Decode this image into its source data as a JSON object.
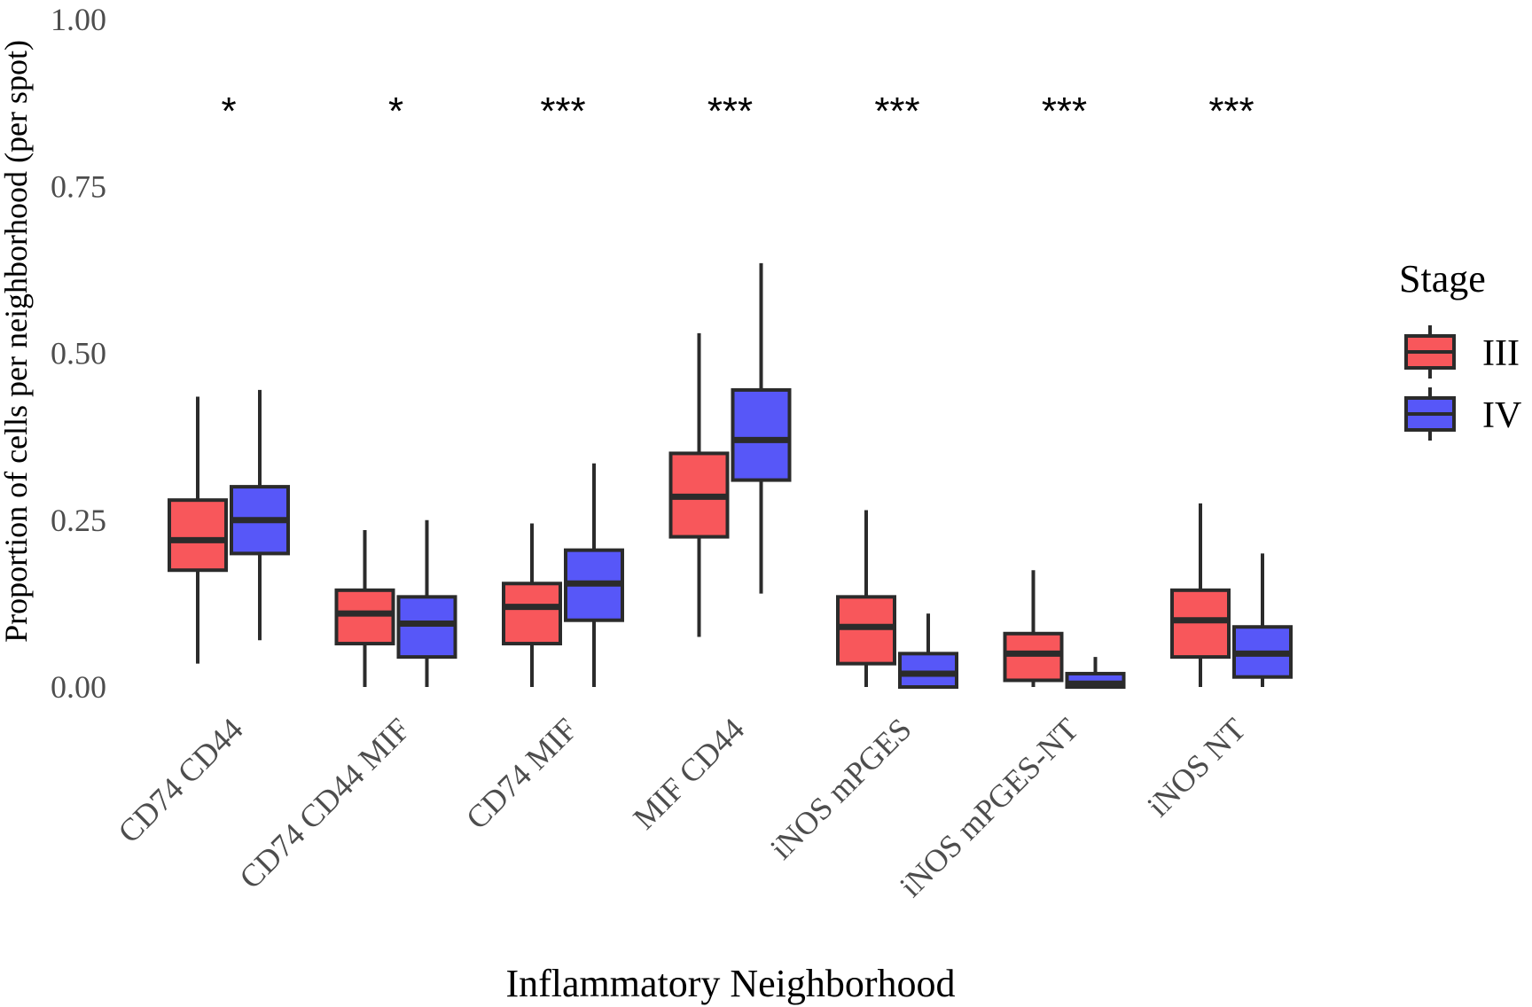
{
  "chart_data": {
    "type": "boxplot",
    "xlabel": "Inflammatory Neighborhood",
    "ylabel": "Proportion of cells per neighborhood (per spot)",
    "ylim": [
      0,
      1
    ],
    "yticks": [
      "0.00",
      "0.25",
      "0.50",
      "0.75",
      "1.00"
    ],
    "categories": [
      "CD74 CD44",
      "CD74 CD44 MIF",
      "CD74 MIF",
      "MIF CD44",
      "iNOS mPGES",
      "iNOS mPGES-NT",
      "iNOS NT"
    ],
    "significance": [
      "*",
      "*",
      "***",
      "***",
      "***",
      "***",
      "***"
    ],
    "legend": {
      "title": "Stage",
      "position": "right"
    },
    "series": [
      {
        "name": "III",
        "color": "#F8575B",
        "boxes": [
          {
            "min": 0.035,
            "q1": 0.175,
            "median": 0.22,
            "q3": 0.28,
            "max": 0.435
          },
          {
            "min": 0.0,
            "q1": 0.065,
            "median": 0.11,
            "q3": 0.145,
            "max": 0.235
          },
          {
            "min": 0.0,
            "q1": 0.065,
            "median": 0.12,
            "q3": 0.155,
            "max": 0.245
          },
          {
            "min": 0.075,
            "q1": 0.225,
            "median": 0.285,
            "q3": 0.35,
            "max": 0.53
          },
          {
            "min": 0.0,
            "q1": 0.035,
            "median": 0.09,
            "q3": 0.135,
            "max": 0.265
          },
          {
            "min": 0.0,
            "q1": 0.01,
            "median": 0.05,
            "q3": 0.08,
            "max": 0.175
          },
          {
            "min": 0.0,
            "q1": 0.045,
            "median": 0.1,
            "q3": 0.145,
            "max": 0.275
          }
        ]
      },
      {
        "name": "IV",
        "color": "#5757F8",
        "boxes": [
          {
            "min": 0.07,
            "q1": 0.2,
            "median": 0.25,
            "q3": 0.3,
            "max": 0.445
          },
          {
            "min": 0.0,
            "q1": 0.045,
            "median": 0.095,
            "q3": 0.135,
            "max": 0.25
          },
          {
            "min": 0.0,
            "q1": 0.1,
            "median": 0.155,
            "q3": 0.205,
            "max": 0.335
          },
          {
            "min": 0.14,
            "q1": 0.31,
            "median": 0.37,
            "q3": 0.445,
            "max": 0.635
          },
          {
            "min": 0.0,
            "q1": 0.0,
            "median": 0.02,
            "q3": 0.05,
            "max": 0.11
          },
          {
            "min": 0.0,
            "q1": 0.0,
            "median": 0.005,
            "q3": 0.02,
            "max": 0.045
          },
          {
            "min": 0.0,
            "q1": 0.015,
            "median": 0.05,
            "q3": 0.09,
            "max": 0.2
          }
        ]
      }
    ]
  }
}
